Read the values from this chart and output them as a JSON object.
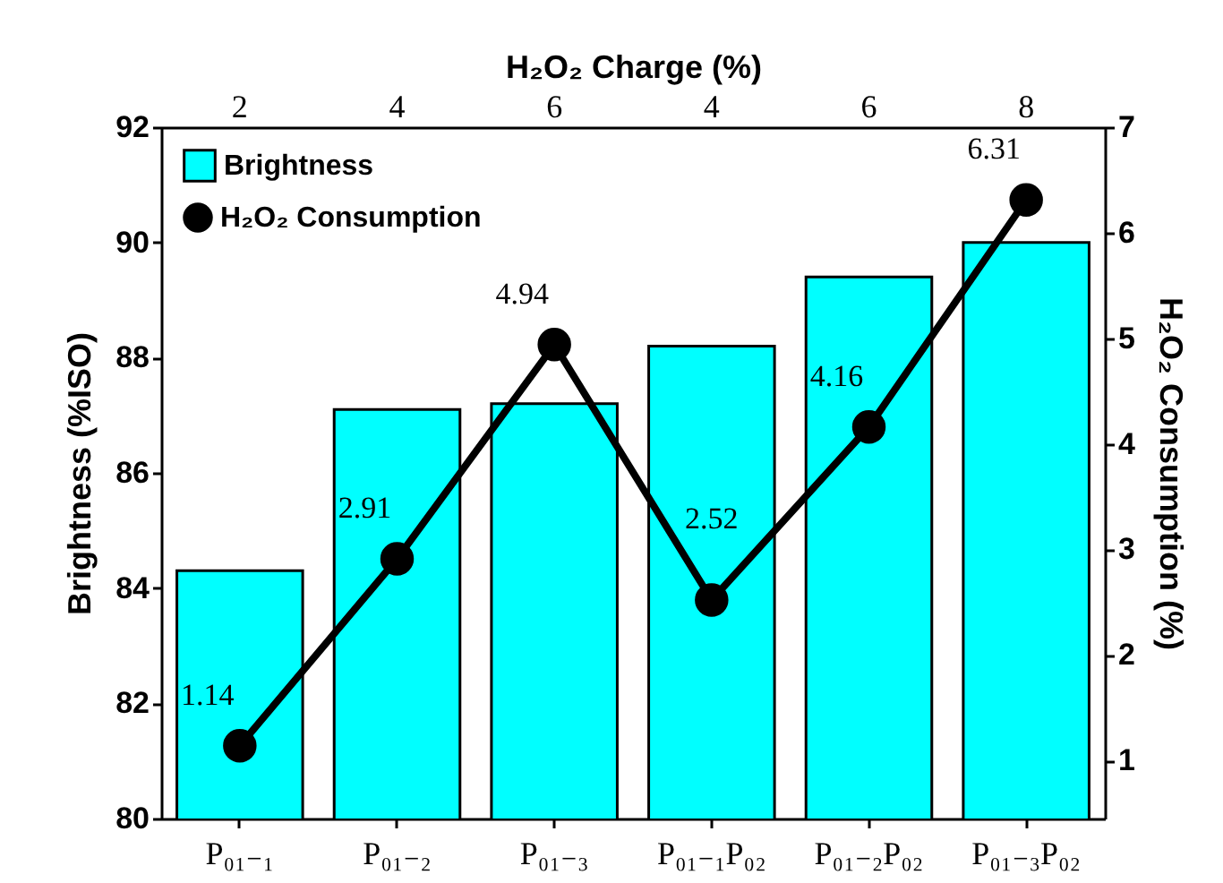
{
  "chart_data": {
    "type": "bar",
    "xlabel": null,
    "x2label": "H₂O₂ Charge (%)",
    "ylabel": "Brightness (%ISO)",
    "y2label": "H₂O₂ Consumption (%)",
    "categories": [
      "P₀₁₋₁",
      "P₀₁₋₂",
      "P₀₁₋₃",
      "P₀₁₋₁P₀₂",
      "P₀₁₋₂P₀₂",
      "P₀₁₋₃P₀₂"
    ],
    "annotations": [
      "2",
      "4",
      "6",
      "4",
      "6",
      "8"
    ],
    "series": [
      {
        "name": "Brightness",
        "color": "#00ffff",
        "values": [
          84.3,
          87.1,
          87.2,
          88.2,
          89.4,
          90.0
        ]
      },
      {
        "name": "H₂O₂ Consumption",
        "type": "line",
        "axis": "y2",
        "color": "#000000",
        "values": [
          1.14,
          2.91,
          4.94,
          2.52,
          4.16,
          6.31
        ],
        "data_labels": true,
        "marker": "circle"
      }
    ],
    "ylim": [
      80,
      92
    ],
    "yticks": [
      80,
      82,
      84,
      86,
      88,
      90,
      92
    ],
    "y2lim": [
      0.45,
      7
    ],
    "y2ticks": [
      1,
      2,
      3,
      4,
      5,
      6,
      7
    ],
    "legend": "top left",
    "grid": false
  }
}
